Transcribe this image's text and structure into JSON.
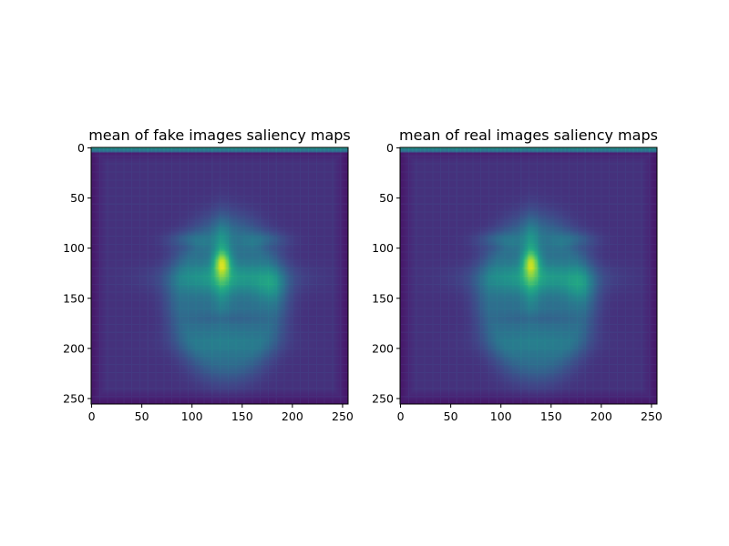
{
  "chart_data": [
    {
      "type": "heatmap",
      "title": "mean of fake images saliency maps",
      "xlabel": "",
      "ylabel": "",
      "xlim": [
        0,
        255
      ],
      "ylim": [
        255,
        0
      ],
      "xticks": [
        0,
        50,
        100,
        150,
        200,
        250
      ],
      "yticks": [
        0,
        50,
        100,
        150,
        200,
        250
      ],
      "colormap": "viridis",
      "resolution": [
        256,
        256
      ],
      "features": {
        "top_border_row_value": 0.5,
        "outer_edge_value": 0.1,
        "face_center": [
          135,
          150
        ],
        "face_radius_x": 80,
        "face_radius_y": 110,
        "peak_location": [
          130,
          115
        ],
        "peak_value": 0.85,
        "eye_band_y": 100,
        "mouth_band_y": 130
      }
    },
    {
      "type": "heatmap",
      "title": "mean of real images saliency maps",
      "xlabel": "",
      "ylabel": "",
      "xlim": [
        0,
        255
      ],
      "ylim": [
        255,
        0
      ],
      "xticks": [
        0,
        50,
        100,
        150,
        200,
        250
      ],
      "yticks": [
        0,
        50,
        100,
        150,
        200,
        250
      ],
      "colormap": "viridis",
      "resolution": [
        256,
        256
      ],
      "features": {
        "top_border_row_value": 0.5,
        "outer_edge_value": 0.1,
        "face_center": [
          135,
          150
        ],
        "face_radius_x": 80,
        "face_radius_y": 110,
        "peak_location": [
          130,
          115
        ],
        "peak_value": 0.82,
        "eye_band_y": 100,
        "mouth_band_y": 130
      }
    }
  ]
}
